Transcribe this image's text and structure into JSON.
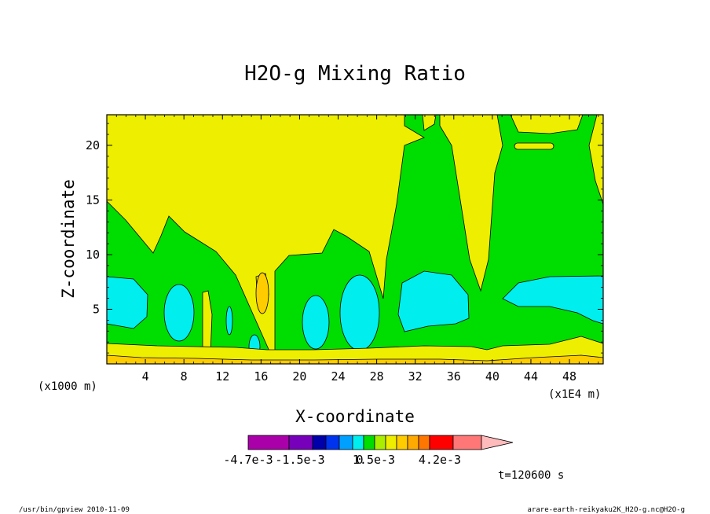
{
  "chart_data": {
    "type": "heatmap",
    "title": "H2O-g Mixing Ratio",
    "xlabel": "X-coordinate",
    "ylabel": "Z-coordinate",
    "x_unit_label": "(x1000 m)",
    "x_scale_label": "(x1E4 m)",
    "xlim": [
      0,
      51.5
    ],
    "ylim": [
      0,
      22.8
    ],
    "xticks": [
      4,
      8,
      12,
      16,
      20,
      24,
      28,
      32,
      36,
      40,
      44,
      48
    ],
    "yticks": [
      5,
      10,
      15,
      20
    ],
    "colorbar": {
      "colors": [
        "#aa00aa",
        "#7700bb",
        "#0000aa",
        "#0033ee",
        "#00a0ff",
        "#00eeee",
        "#00dd00",
        "#aaee00",
        "#eeee00",
        "#ffcc00",
        "#ffaa00",
        "#ff7700",
        "#ff0000",
        "#ff7777",
        "#ffbbbb"
      ],
      "labels": [
        "-4.7e-3",
        "-1.5e-3",
        "0",
        "1.5e-3",
        "4.2e-3"
      ]
    },
    "dominant_levels": [
      {
        "region": "background (upper domain)",
        "color": "#eeee00"
      },
      {
        "region": "mid-level band (z ~ 1-15)",
        "color": "#00dd00"
      },
      {
        "region": "moist cores (z ~ 2-8)",
        "color": "#00eeee"
      },
      {
        "region": "near-surface layer (z < 2)",
        "color": "#ffcc00"
      }
    ]
  },
  "time_label": "t=120600 s",
  "footer": {
    "left": "/usr/bin/gpview   2010-11-09",
    "right": "arare-earth-reikyaku2K_H2O-g.nc@H2O-g"
  }
}
